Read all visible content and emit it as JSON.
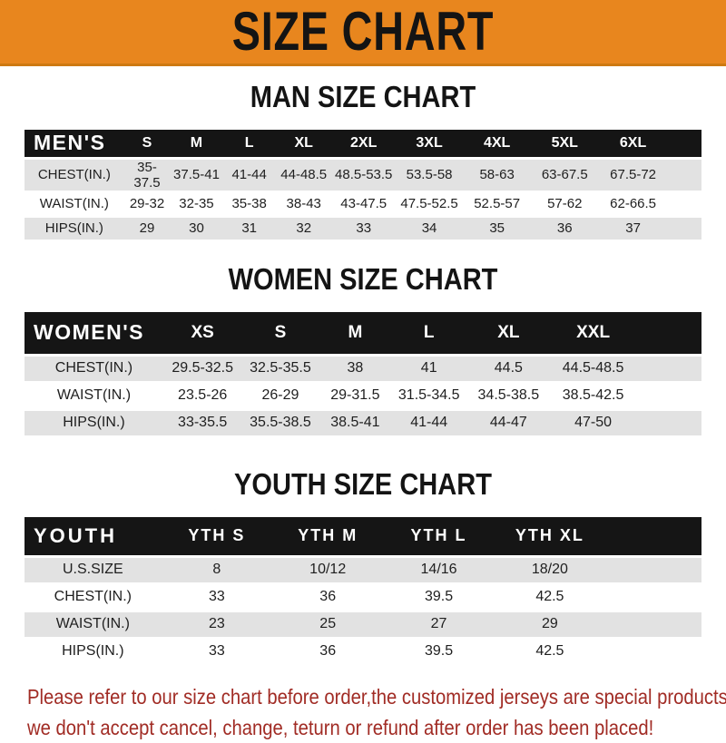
{
  "banner": {
    "title": "SIZE CHART"
  },
  "colors": {
    "banner": "#E8861E",
    "banner_border": "#CE7911",
    "header_bar": "#151515",
    "row_stripe": "#E2E2E2",
    "disclaimer": "#A12C25"
  },
  "chart_data": [
    {
      "type": "table",
      "title": "MAN SIZE CHART",
      "columns": [
        "MEN'S",
        "S",
        "M",
        "L",
        "XL",
        "2XL",
        "3XL",
        "4XL",
        "5XL",
        "6XL"
      ],
      "rows": [
        [
          "CHEST(IN.)",
          "35-37.5",
          "37.5-41",
          "41-44",
          "44-48.5",
          "48.5-53.5",
          "53.5-58",
          "58-63",
          "63-67.5",
          "67.5-72"
        ],
        [
          "WAIST(IN.)",
          "29-32",
          "32-35",
          "35-38",
          "38-43",
          "43-47.5",
          "47.5-52.5",
          "52.5-57",
          "57-62",
          "62-66.5"
        ],
        [
          "HIPS(IN.)",
          "29",
          "30",
          "31",
          "32",
          "33",
          "34",
          "35",
          "36",
          "37"
        ]
      ]
    },
    {
      "type": "table",
      "title": "WOMEN SIZE CHART",
      "columns": [
        "WOMEN'S",
        "XS",
        "S",
        "M",
        "L",
        "XL",
        "XXL"
      ],
      "rows": [
        [
          "CHEST(IN.)",
          "29.5-32.5",
          "32.5-35.5",
          "38",
          "41",
          "44.5",
          "44.5-48.5"
        ],
        [
          "WAIST(IN.)",
          "23.5-26",
          "26-29",
          "29-31.5",
          "31.5-34.5",
          "34.5-38.5",
          "38.5-42.5"
        ],
        [
          "HIPS(IN.)",
          "33-35.5",
          "35.5-38.5",
          "38.5-41",
          "41-44",
          "44-47",
          "47-50"
        ]
      ]
    },
    {
      "type": "table",
      "title": "YOUTH SIZE CHART",
      "columns": [
        "YOUTH",
        "YTH S",
        "YTH M",
        "YTH L",
        "YTH XL"
      ],
      "rows": [
        [
          "U.S.SIZE",
          "8",
          "10/12",
          "14/16",
          "18/20"
        ],
        [
          "CHEST(IN.)",
          "33",
          "36",
          "39.5",
          "42.5"
        ],
        [
          "WAIST(IN.)",
          "23",
          "25",
          "27",
          "29"
        ],
        [
          "HIPS(IN.)",
          "33",
          "36",
          "39.5",
          "42.5"
        ]
      ]
    }
  ],
  "footer": {
    "lines": [
      "Please refer to our size chart before order,the customized jerseys are special products,",
      "we don't accept cancel, change, teturn or refund after order has been placed!"
    ]
  }
}
